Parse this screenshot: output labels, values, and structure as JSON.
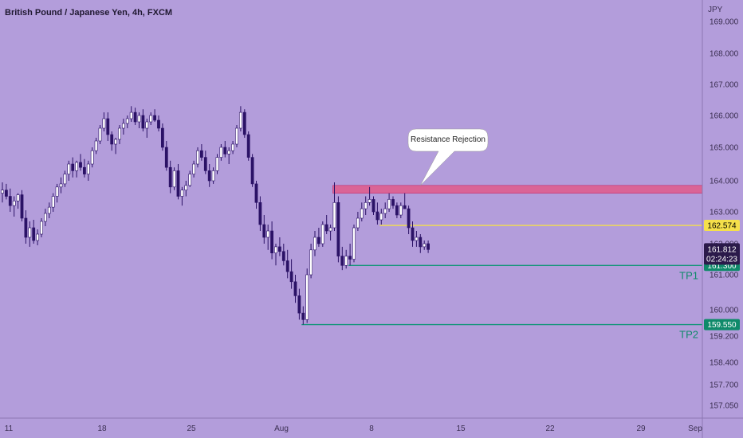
{
  "chart_data": {
    "type": "candlestick",
    "title": "British Pound / Japanese Yen, 4h, FXCM",
    "currency_label": "JPY",
    "y_ticks": [
      "169.000",
      "168.000",
      "167.000",
      "166.000",
      "165.000",
      "164.000",
      "163.000",
      "162.000",
      "161.000",
      "160.000",
      "159.200",
      "158.400",
      "157.700",
      "157.050"
    ],
    "x_ticks": [
      "11",
      "18",
      "25",
      "Aug",
      "8",
      "15",
      "22",
      "29",
      "Sep"
    ],
    "grid": false,
    "candles": [
      [
        163.6,
        163.95,
        163.3,
        163.7
      ],
      [
        163.7,
        163.9,
        163.4,
        163.5
      ],
      [
        163.5,
        163.75,
        163.0,
        163.2
      ],
      [
        163.2,
        163.5,
        162.85,
        163.35
      ],
      [
        163.35,
        163.6,
        163.1,
        163.55
      ],
      [
        163.55,
        163.7,
        162.7,
        162.8
      ],
      [
        162.8,
        163.05,
        162.0,
        162.2
      ],
      [
        162.2,
        162.7,
        161.9,
        162.5
      ],
      [
        162.5,
        162.75,
        162.0,
        162.1
      ],
      [
        162.1,
        162.45,
        161.95,
        162.3
      ],
      [
        162.3,
        162.8,
        162.2,
        162.7
      ],
      [
        162.7,
        163.1,
        162.55,
        162.95
      ],
      [
        162.95,
        163.3,
        162.8,
        163.15
      ],
      [
        163.15,
        163.6,
        163.0,
        163.5
      ],
      [
        163.5,
        163.9,
        163.3,
        163.8
      ],
      [
        163.8,
        164.1,
        163.6,
        163.9
      ],
      [
        163.9,
        164.3,
        163.8,
        164.2
      ],
      [
        164.2,
        164.6,
        164.0,
        164.5
      ],
      [
        164.5,
        164.7,
        164.1,
        164.3
      ],
      [
        164.3,
        164.6,
        164.1,
        164.55
      ],
      [
        164.55,
        164.8,
        164.3,
        164.4
      ],
      [
        164.4,
        164.65,
        164.1,
        164.2
      ],
      [
        164.2,
        164.6,
        164.0,
        164.5
      ],
      [
        164.5,
        165.0,
        164.4,
        164.9
      ],
      [
        164.9,
        165.3,
        164.8,
        165.2
      ],
      [
        165.2,
        165.7,
        165.1,
        165.6
      ],
      [
        165.6,
        166.1,
        165.5,
        165.9
      ],
      [
        165.9,
        166.1,
        165.2,
        165.4
      ],
      [
        165.4,
        165.5,
        164.9,
        165.1
      ],
      [
        165.1,
        165.3,
        164.8,
        165.25
      ],
      [
        165.25,
        165.7,
        165.1,
        165.6
      ],
      [
        165.6,
        165.9,
        165.4,
        165.75
      ],
      [
        165.75,
        166.0,
        165.6,
        165.9
      ],
      [
        165.9,
        166.3,
        165.8,
        166.1
      ],
      [
        166.1,
        166.25,
        165.7,
        165.8
      ],
      [
        165.8,
        166.1,
        165.6,
        166.0
      ],
      [
        166.0,
        166.2,
        165.5,
        165.6
      ],
      [
        165.6,
        165.9,
        165.3,
        165.8
      ],
      [
        165.8,
        166.1,
        165.7,
        166.0
      ],
      [
        166.0,
        166.2,
        165.8,
        165.85
      ],
      [
        165.85,
        166.0,
        165.5,
        165.6
      ],
      [
        165.6,
        165.75,
        164.9,
        165.0
      ],
      [
        165.0,
        165.2,
        164.3,
        164.4
      ],
      [
        164.4,
        164.6,
        163.6,
        163.8
      ],
      [
        163.8,
        164.4,
        163.7,
        164.3
      ],
      [
        164.3,
        164.5,
        163.4,
        163.5
      ],
      [
        163.5,
        163.8,
        163.2,
        163.7
      ],
      [
        163.7,
        164.0,
        163.5,
        163.85
      ],
      [
        163.85,
        164.3,
        163.8,
        164.2
      ],
      [
        164.2,
        164.6,
        164.1,
        164.5
      ],
      [
        164.5,
        165.0,
        164.4,
        164.9
      ],
      [
        164.9,
        165.1,
        164.6,
        164.7
      ],
      [
        164.7,
        164.9,
        164.2,
        164.3
      ],
      [
        164.3,
        164.5,
        163.8,
        164.0
      ],
      [
        164.0,
        164.4,
        163.9,
        164.3
      ],
      [
        164.3,
        164.8,
        164.2,
        164.7
      ],
      [
        164.7,
        165.1,
        164.6,
        165.0
      ],
      [
        165.0,
        165.2,
        164.7,
        164.8
      ],
      [
        164.8,
        165.0,
        164.5,
        164.9
      ],
      [
        164.9,
        165.2,
        164.8,
        165.1
      ],
      [
        165.1,
        165.7,
        165.0,
        165.6
      ],
      [
        165.6,
        166.3,
        165.5,
        166.1
      ],
      [
        166.1,
        166.2,
        165.3,
        165.4
      ],
      [
        165.4,
        165.5,
        164.6,
        164.7
      ],
      [
        164.7,
        164.8,
        163.8,
        163.9
      ],
      [
        163.9,
        164.0,
        163.1,
        163.3
      ],
      [
        163.3,
        163.5,
        162.4,
        162.6
      ],
      [
        162.6,
        162.9,
        162.0,
        162.2
      ],
      [
        162.2,
        162.6,
        161.8,
        162.4
      ],
      [
        162.4,
        162.7,
        161.5,
        161.7
      ],
      [
        161.7,
        162.0,
        161.3,
        161.9
      ],
      [
        161.9,
        162.2,
        161.6,
        161.75
      ],
      [
        161.75,
        162.0,
        161.3,
        161.45
      ],
      [
        161.45,
        161.8,
        160.9,
        161.1
      ],
      [
        161.1,
        161.5,
        160.6,
        160.8
      ],
      [
        160.8,
        161.0,
        160.2,
        160.4
      ],
      [
        160.4,
        160.6,
        159.7,
        159.9
      ],
      [
        159.9,
        160.1,
        159.55,
        159.7
      ],
      [
        159.7,
        161.2,
        159.6,
        161.0
      ],
      [
        161.0,
        162.0,
        160.9,
        161.8
      ],
      [
        161.8,
        162.4,
        161.6,
        162.2
      ],
      [
        162.2,
        162.5,
        161.9,
        162.0
      ],
      [
        162.0,
        162.7,
        161.9,
        162.6
      ],
      [
        162.6,
        162.9,
        162.3,
        162.4
      ],
      [
        162.4,
        162.6,
        162.1,
        162.5
      ],
      [
        162.5,
        163.95,
        162.4,
        163.3
      ],
      [
        163.3,
        163.5,
        161.4,
        161.6
      ],
      [
        161.6,
        161.9,
        161.15,
        161.3
      ],
      [
        161.3,
        161.8,
        161.2,
        161.6
      ],
      [
        161.6,
        162.0,
        161.3,
        161.5
      ],
      [
        161.5,
        162.6,
        161.4,
        162.5
      ],
      [
        162.5,
        163.0,
        162.4,
        162.8
      ],
      [
        162.8,
        163.3,
        162.7,
        163.1
      ],
      [
        163.1,
        163.5,
        162.9,
        163.3
      ],
      [
        163.3,
        163.8,
        163.2,
        163.4
      ],
      [
        163.4,
        163.5,
        162.9,
        163.0
      ],
      [
        163.0,
        163.3,
        162.6,
        162.75
      ],
      [
        162.75,
        163.1,
        162.6,
        162.95
      ],
      [
        162.95,
        163.3,
        162.8,
        163.1
      ],
      [
        163.1,
        163.6,
        163.0,
        163.4
      ],
      [
        163.4,
        163.5,
        163.1,
        163.2
      ],
      [
        163.2,
        163.3,
        162.8,
        162.9
      ],
      [
        162.9,
        163.3,
        162.8,
        163.2
      ],
      [
        163.2,
        163.6,
        163.1,
        163.1
      ],
      [
        163.1,
        163.2,
        162.3,
        162.5
      ],
      [
        162.5,
        162.7,
        161.9,
        162.1
      ],
      [
        162.1,
        162.4,
        161.9,
        162.2
      ],
      [
        162.2,
        162.3,
        161.7,
        161.9
      ],
      [
        161.9,
        162.1,
        161.8,
        162.0
      ],
      [
        162.0,
        162.1,
        161.7,
        161.812
      ]
    ],
    "zones": [
      {
        "kind": "rect",
        "name": "resistance-zone",
        "from_index": 85,
        "to_x": "right-edge",
        "y_top": 163.85,
        "y_bottom": 163.6,
        "color": "#e05a8a"
      }
    ],
    "levels": [
      {
        "name": "entry-line",
        "value": 162.574,
        "from_index": 97,
        "color": "#f5e04a",
        "tag": "162.574",
        "tag_bg": "#f5e04a",
        "tag_fg": "#000000"
      },
      {
        "name": "tp1-line",
        "value": 161.3,
        "from_index": 89,
        "color": "#15967a",
        "tag": "161.300",
        "tag_bg": "#0f8a6a",
        "tag_fg": "#ffffff",
        "label": "TP1"
      },
      {
        "name": "tp2-line",
        "value": 159.55,
        "from_index": 77,
        "color": "#15967a",
        "tag": "159.550",
        "tag_bg": "#0f8a6a",
        "tag_fg": "#ffffff",
        "label": "TP2"
      }
    ],
    "last_price": {
      "value": "161.812",
      "countdown": "02:24:23",
      "bg": "#2b1a4a",
      "fg": "#ffffff"
    },
    "annotation": {
      "text": "Resistance Rejection"
    },
    "colors": {
      "background": "#b39ddb",
      "candle": "#2b1266",
      "wick": "#2b1266",
      "axis_text": "#3b2f52"
    }
  }
}
